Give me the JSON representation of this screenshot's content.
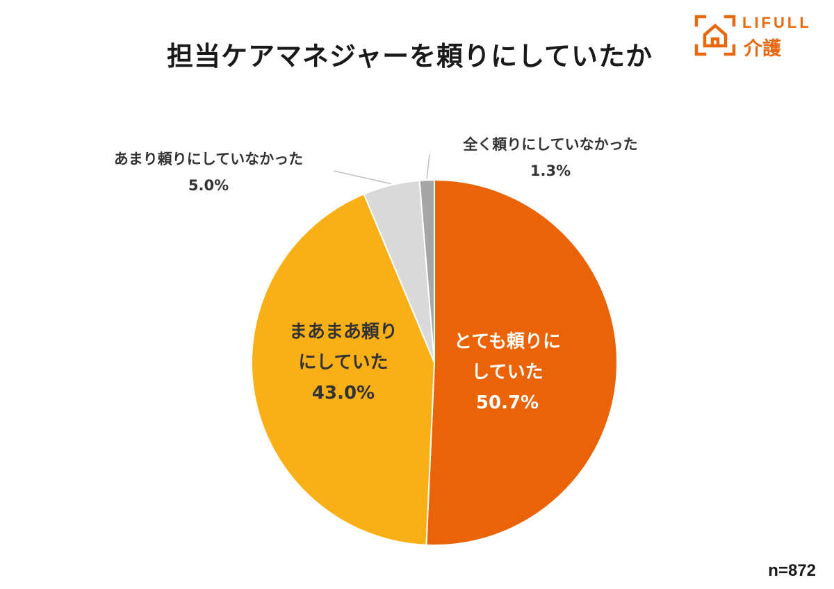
{
  "logo": {
    "text_top": "LIFULL",
    "text_bottom": "介護",
    "brand_color": "#e8680f",
    "icon": "house-bracket-icon"
  },
  "sample_size": "n=872",
  "chart_data": {
    "type": "pie",
    "title": "担当ケアマネジャーを頼りにしていたか",
    "start_angle_deg": 0,
    "direction": "clockwise",
    "slices": [
      {
        "label_lines": [
          "とても頼りに",
          "していた"
        ],
        "value": 50.7,
        "value_label": "50.7%",
        "color": "#ea6407",
        "label_color": "#ffffff",
        "label_position": "inside"
      },
      {
        "label_lines": [
          "まあまあ頼り",
          "にしていた"
        ],
        "value": 43.0,
        "value_label": "43.0%",
        "color": "#f9b016",
        "label_color": "#333333",
        "label_position": "inside"
      },
      {
        "label_lines": [
          "あまり頼りにしていなかった"
        ],
        "value": 5.0,
        "value_label": "5.0%",
        "color": "#d9d9d9",
        "label_color": "#333333",
        "label_position": "outside-left"
      },
      {
        "label_lines": [
          "全く頼りにしていなかった"
        ],
        "value": 1.3,
        "value_label": "1.3%",
        "color": "#a6a6a6",
        "label_color": "#333333",
        "label_position": "outside-right"
      }
    ]
  }
}
